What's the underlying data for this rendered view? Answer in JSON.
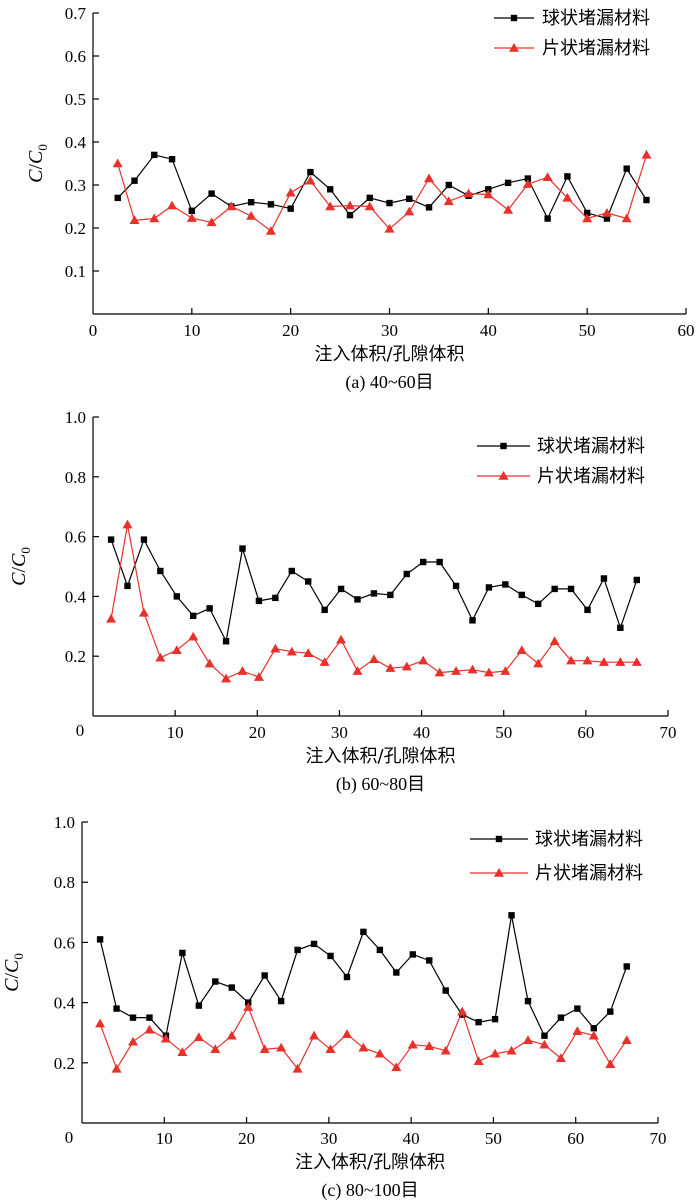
{
  "colors": {
    "series_black": "#000000",
    "series_red": "#e8312b",
    "axis": "#000000"
  },
  "chart_data": [
    {
      "type": "line",
      "caption": "(a) 40~60目",
      "xlabel": "注入体积/孔隙体积",
      "ylabel": {
        "main": "C",
        "slash": "/",
        "main2": "C",
        "sub": "0"
      },
      "xlim": [
        0,
        60
      ],
      "ylim": [
        0,
        0.7
      ],
      "xticks": [
        "0",
        "10",
        "20",
        "30",
        "40",
        "50",
        "60"
      ],
      "xtick_values": [
        0,
        10,
        20,
        30,
        40,
        50,
        60
      ],
      "yticks": [
        "0.1",
        "0.2",
        "0.3",
        "0.4",
        "0.5",
        "0.6",
        "0.7"
      ],
      "ytick_values": [
        0.1,
        0.2,
        0.3,
        0.4,
        0.5,
        0.6,
        0.7
      ],
      "origin_label": "0",
      "legend_position": "top-right",
      "series": [
        {
          "name": "球状堵漏材料",
          "color": "#000000",
          "marker": "square",
          "x": [
            2.5,
            4.2,
            6.2,
            8,
            10,
            12,
            14,
            16,
            18,
            20,
            22,
            24,
            26,
            28,
            30,
            32,
            34,
            36,
            38,
            40,
            42,
            44,
            46,
            48,
            50,
            52,
            54,
            56
          ],
          "y": [
            0.27,
            0.31,
            0.37,
            0.36,
            0.24,
            0.28,
            0.25,
            0.26,
            0.255,
            0.245,
            0.33,
            0.29,
            0.23,
            0.27,
            0.258,
            0.268,
            0.248,
            0.3,
            0.275,
            0.29,
            0.305,
            0.315,
            0.222,
            0.32,
            0.235,
            0.222,
            0.338,
            0.265
          ]
        },
        {
          "name": "片状堵漏材料",
          "color": "#e8312b",
          "marker": "triangle",
          "x": [
            2.5,
            4.2,
            6.2,
            8,
            10,
            12,
            14,
            16,
            18,
            20,
            22,
            24,
            26,
            28,
            30,
            32,
            34,
            36,
            38,
            40,
            42,
            44,
            46,
            48,
            50,
            52,
            54,
            56
          ],
          "y": [
            0.35,
            0.218,
            0.222,
            0.252,
            0.223,
            0.213,
            0.25,
            0.228,
            0.193,
            0.282,
            0.31,
            0.25,
            0.252,
            0.25,
            0.198,
            0.238,
            0.315,
            0.262,
            0.28,
            0.278,
            0.242,
            0.302,
            0.318,
            0.27,
            0.222,
            0.235,
            0.222,
            0.37
          ]
        }
      ]
    },
    {
      "type": "line",
      "caption": "(b) 60~80目",
      "xlabel": "注入体积/孔隙体积",
      "ylabel": {
        "main": "C",
        "slash": "/",
        "main2": "C",
        "sub": "0"
      },
      "xlim": [
        0,
        70
      ],
      "ylim": [
        0,
        1.0
      ],
      "xticks": [
        "10",
        "20",
        "30",
        "40",
        "50",
        "60",
        "70"
      ],
      "xtick_values": [
        10,
        20,
        30,
        40,
        50,
        60,
        70
      ],
      "yticks": [
        "0.2",
        "0.4",
        "0.6",
        "0.8",
        "1.0"
      ],
      "ytick_values": [
        0.2,
        0.4,
        0.6,
        0.8,
        1.0
      ],
      "origin_label": "0",
      "legend_position": "top-right",
      "series": [
        {
          "name": "球状堵漏材料",
          "color": "#000000",
          "marker": "square",
          "x": [
            2.2,
            4.2,
            6.2,
            8.2,
            10.2,
            12.2,
            14.2,
            16.2,
            18.2,
            20.2,
            22.2,
            24.2,
            26.2,
            28.2,
            30.2,
            32.2,
            34.2,
            36.2,
            38.2,
            40.2,
            42.2,
            44.2,
            46.2,
            48.2,
            50.2,
            52.2,
            54.2,
            56.2,
            58.2,
            60.2,
            62.2,
            64.2,
            66.2
          ],
          "y": [
            0.59,
            0.435,
            0.59,
            0.485,
            0.4,
            0.335,
            0.36,
            0.25,
            0.56,
            0.385,
            0.395,
            0.485,
            0.45,
            0.355,
            0.425,
            0.39,
            0.41,
            0.405,
            0.475,
            0.515,
            0.515,
            0.435,
            0.32,
            0.43,
            0.44,
            0.405,
            0.375,
            0.425,
            0.425,
            0.355,
            0.46,
            0.295,
            0.455
          ]
        },
        {
          "name": "片状堵漏材料",
          "color": "#e8312b",
          "marker": "triangle",
          "x": [
            2.2,
            4.2,
            6.2,
            8.2,
            10.2,
            12.2,
            14.2,
            16.2,
            18.2,
            20.2,
            22.2,
            24.2,
            26.2,
            28.2,
            30.2,
            32.2,
            34.2,
            36.2,
            38.2,
            40.2,
            42.2,
            44.2,
            46.2,
            48.2,
            50.2,
            52.2,
            54.2,
            56.2,
            58.2,
            60.2,
            62.2,
            64.2,
            66.2
          ],
          "y": [
            0.325,
            0.64,
            0.345,
            0.195,
            0.22,
            0.265,
            0.175,
            0.125,
            0.15,
            0.13,
            0.225,
            0.215,
            0.21,
            0.18,
            0.255,
            0.15,
            0.19,
            0.16,
            0.165,
            0.185,
            0.145,
            0.15,
            0.155,
            0.145,
            0.15,
            0.22,
            0.175,
            0.25,
            0.185,
            0.185,
            0.18,
            0.18,
            0.18
          ]
        }
      ]
    },
    {
      "type": "line",
      "caption": "(c) 80~100目",
      "xlabel": "注入体积/孔隙体积",
      "ylabel": {
        "main": "C",
        "slash": "/",
        "main2": "C",
        "sub": "0"
      },
      "xlim": [
        0,
        70
      ],
      "ylim": [
        0,
        1.0
      ],
      "xticks": [
        "10",
        "20",
        "30",
        "40",
        "50",
        "60",
        "70"
      ],
      "xtick_values": [
        10,
        20,
        30,
        40,
        50,
        60,
        70
      ],
      "yticks": [
        "0.2",
        "0.4",
        "0.6",
        "0.8",
        "1.0"
      ],
      "ytick_values": [
        0.2,
        0.4,
        0.6,
        0.8,
        1.0
      ],
      "origin_label": "0",
      "legend_position": "top-right",
      "series": [
        {
          "name": "球状堵漏材料",
          "color": "#000000",
          "marker": "square",
          "x": [
            2.2,
            4.2,
            6.2,
            8.2,
            10.2,
            12.2,
            14.2,
            16.2,
            18.2,
            20.2,
            22.2,
            24.2,
            26.2,
            28.2,
            30.2,
            32.2,
            34.2,
            36.2,
            38.2,
            40.2,
            42.2,
            44.2,
            46.2,
            48.2,
            50.2,
            52.2,
            54.2,
            56.2,
            58.2,
            60.2,
            62.2,
            64.2,
            66.2
          ],
          "y": [
            0.61,
            0.38,
            0.35,
            0.35,
            0.29,
            0.565,
            0.39,
            0.47,
            0.45,
            0.4,
            0.49,
            0.405,
            0.575,
            0.595,
            0.555,
            0.485,
            0.635,
            0.575,
            0.5,
            0.56,
            0.54,
            0.44,
            0.36,
            0.335,
            0.345,
            0.69,
            0.405,
            0.29,
            0.35,
            0.38,
            0.315,
            0.37,
            0.52
          ]
        },
        {
          "name": "片状堵漏材料",
          "color": "#e8312b",
          "marker": "triangle",
          "x": [
            2.2,
            4.2,
            6.2,
            8.2,
            10.2,
            12.2,
            14.2,
            16.2,
            18.2,
            20.2,
            22.2,
            24.2,
            26.2,
            28.2,
            30.2,
            32.2,
            34.2,
            36.2,
            38.2,
            40.2,
            42.2,
            44.2,
            46.2,
            48.2,
            50.2,
            52.2,
            54.2,
            56.2,
            58.2,
            60.2,
            62.2,
            64.2,
            66.2
          ],
          "y": [
            0.33,
            0.18,
            0.27,
            0.31,
            0.28,
            0.235,
            0.285,
            0.245,
            0.29,
            0.385,
            0.245,
            0.25,
            0.18,
            0.29,
            0.245,
            0.295,
            0.25,
            0.23,
            0.185,
            0.26,
            0.255,
            0.24,
            0.37,
            0.205,
            0.23,
            0.24,
            0.275,
            0.26,
            0.215,
            0.305,
            0.29,
            0.195,
            0.275
          ]
        }
      ]
    }
  ]
}
